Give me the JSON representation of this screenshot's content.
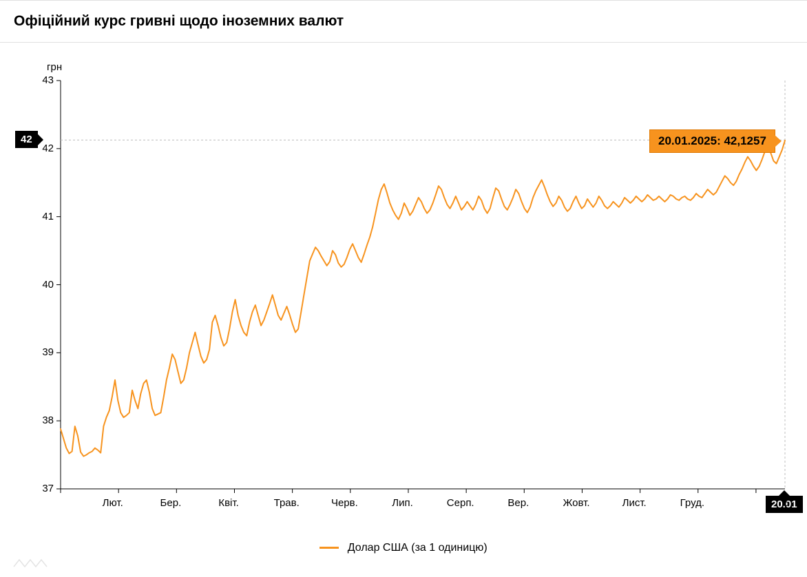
{
  "header": {
    "title": "Офіційний курс гривні щодо іноземних валют"
  },
  "chart": {
    "type": "line",
    "y_unit": "грн",
    "background_color": "#ffffff",
    "axis_color": "#000000",
    "grid_dash": "3,3",
    "grid_color": "#bdbdbd",
    "line_color": "#f7931e",
    "line_width": 2,
    "ylim": [
      37,
      43
    ],
    "yticks": [
      37,
      38,
      39,
      40,
      41,
      42,
      43
    ],
    "xticks": [
      "Лют.",
      "Бер.",
      "Квіт.",
      "Трав.",
      "Черв.",
      "Лип.",
      "Серп.",
      "Вер.",
      "Жовт.",
      "Лист.",
      "Груд."
    ],
    "xtick_trailing": "5",
    "n_points": 254,
    "current": {
      "x_label": "20.01",
      "y_label": "42",
      "tooltip": "20.01.2025: 42,1257",
      "y_value": 42.1257
    },
    "tooltip_bg": "#f7931e",
    "tooltip_border": "#e07800",
    "tag_bg": "#000000",
    "tag_text": "#ffffff",
    "label_fontsize": 15,
    "title_fontsize": 21,
    "series": [
      37.88,
      37.74,
      37.6,
      37.52,
      37.55,
      37.92,
      37.78,
      37.54,
      37.48,
      37.5,
      37.53,
      37.55,
      37.6,
      37.57,
      37.53,
      37.92,
      38.05,
      38.15,
      38.35,
      38.6,
      38.3,
      38.12,
      38.05,
      38.08,
      38.12,
      38.45,
      38.3,
      38.18,
      38.4,
      38.55,
      38.6,
      38.42,
      38.18,
      38.08,
      38.1,
      38.12,
      38.35,
      38.6,
      38.78,
      38.98,
      38.9,
      38.72,
      38.55,
      38.6,
      38.78,
      39.0,
      39.15,
      39.3,
      39.12,
      38.95,
      38.85,
      38.9,
      39.05,
      39.45,
      39.55,
      39.4,
      39.22,
      39.1,
      39.15,
      39.35,
      39.6,
      39.78,
      39.55,
      39.4,
      39.3,
      39.25,
      39.45,
      39.6,
      39.7,
      39.55,
      39.4,
      39.48,
      39.6,
      39.72,
      39.85,
      39.7,
      39.55,
      39.48,
      39.58,
      39.68,
      39.56,
      39.42,
      39.3,
      39.35,
      39.6,
      39.85,
      40.1,
      40.35,
      40.45,
      40.55,
      40.5,
      40.42,
      40.35,
      40.28,
      40.34,
      40.5,
      40.44,
      40.32,
      40.26,
      40.3,
      40.4,
      40.52,
      40.6,
      40.5,
      40.4,
      40.33,
      40.45,
      40.58,
      40.7,
      40.85,
      41.05,
      41.25,
      41.4,
      41.48,
      41.35,
      41.2,
      41.1,
      41.02,
      40.96,
      41.05,
      41.2,
      41.12,
      41.02,
      41.08,
      41.18,
      41.28,
      41.22,
      41.12,
      41.05,
      41.1,
      41.2,
      41.32,
      41.45,
      41.4,
      41.28,
      41.18,
      41.12,
      41.2,
      41.3,
      41.2,
      41.1,
      41.15,
      41.22,
      41.16,
      41.1,
      41.18,
      41.3,
      41.24,
      41.12,
      41.05,
      41.12,
      41.28,
      41.42,
      41.38,
      41.26,
      41.15,
      41.1,
      41.18,
      41.28,
      41.4,
      41.34,
      41.22,
      41.12,
      41.06,
      41.14,
      41.28,
      41.38,
      41.46,
      41.54,
      41.44,
      41.32,
      41.22,
      41.15,
      41.2,
      41.3,
      41.24,
      41.14,
      41.08,
      41.12,
      41.22,
      41.3,
      41.2,
      41.12,
      41.16,
      41.26,
      41.2,
      41.14,
      41.2,
      41.3,
      41.24,
      41.16,
      41.12,
      41.16,
      41.22,
      41.18,
      41.14,
      41.2,
      41.28,
      41.24,
      41.2,
      41.24,
      41.3,
      41.26,
      41.22,
      41.26,
      41.32,
      41.28,
      41.24,
      41.26,
      41.3,
      41.26,
      41.22,
      41.26,
      41.32,
      41.3,
      41.26,
      41.24,
      41.28,
      41.3,
      41.26,
      41.24,
      41.28,
      41.34,
      41.3,
      41.28,
      41.34,
      41.4,
      41.36,
      41.32,
      41.36,
      41.44,
      41.52,
      41.6,
      41.56,
      41.5,
      41.46,
      41.52,
      41.62,
      41.7,
      41.8,
      41.88,
      41.82,
      41.74,
      41.68,
      41.74,
      41.84,
      41.96,
      42.04,
      41.94,
      41.82,
      41.78,
      41.88,
      41.98,
      42.12
    ]
  },
  "legend": {
    "label": "Долар США (за 1 одиницю)"
  }
}
